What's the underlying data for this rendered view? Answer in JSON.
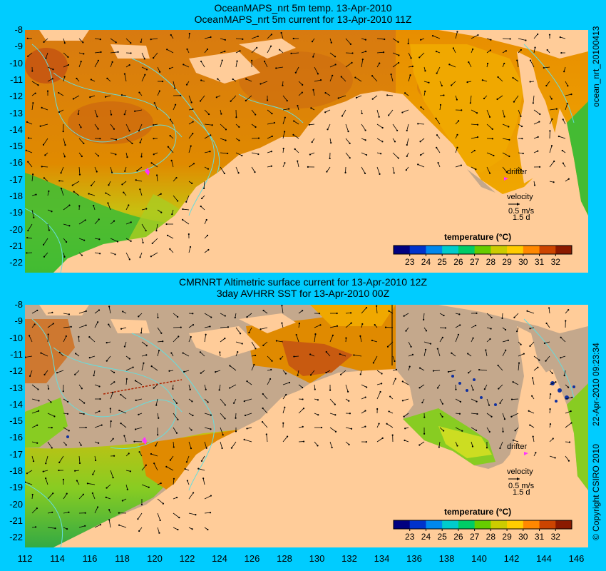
{
  "top_panel": {
    "title_line1": "OceanMAPS_nrt 5m temp. 13-Apr-2010",
    "title_line2": "OceanMAPS_nrt 5m current for 13-Apr-2010 11Z",
    "side_label": "ocean_nrt_20100413",
    "drifter_label": "drifter",
    "velocity_label": "velocity",
    "velocity_scale": "0.5 m/s",
    "velocity_duration": "1.5 d",
    "legend_title": "temperature (°C)"
  },
  "bottom_panel": {
    "title_line1": "CMRNRT Altimetric surface current for 13-Apr-2010 12Z",
    "title_line2": "3day AVHRR SST for 13-Apr-2010 00Z",
    "side_label": "22-Apr-2010 09:23:34",
    "copyright": "© Copyright CSIRO 2010",
    "drifter_label": "drifter",
    "velocity_label": "velocity",
    "velocity_scale": "0.5 m/s",
    "velocity_duration": "1.5 d",
    "legend_title": "temperature (°C)"
  },
  "latitude_ticks": [
    "-8",
    "-9",
    "-10",
    "-11",
    "-12",
    "-13",
    "-14",
    "-15",
    "-16",
    "-17",
    "-18",
    "-19",
    "-20",
    "-21",
    "-22"
  ],
  "longitude_ticks": [
    "112",
    "114",
    "116",
    "118",
    "120",
    "122",
    "124",
    "126",
    "128",
    "130",
    "132",
    "134",
    "136",
    "138",
    "140",
    "142",
    "144",
    "146"
  ],
  "colorbar_ticks": [
    "23",
    "24",
    "25",
    "26",
    "27",
    "28",
    "29",
    "30",
    "31",
    "32"
  ],
  "colorbar_colors": [
    "#000080",
    "#0033cc",
    "#0088ee",
    "#00cccc",
    "#00cc66",
    "#66cc00",
    "#cccc00",
    "#ffcc00",
    "#ff8800",
    "#cc4400",
    "#8b1a00"
  ],
  "colors": {
    "background": "#00ccff",
    "land": "#ffcc99",
    "ocean_warm": "#e08a00",
    "ocean_hot": "#c85a10",
    "ocean_mid": "#f0a000",
    "ocean_cool": "#88cc22",
    "ocean_green": "#33bb33",
    "no_data": "#c4a88c",
    "contour": "#66dddd",
    "drifter": "#ff33ff"
  }
}
